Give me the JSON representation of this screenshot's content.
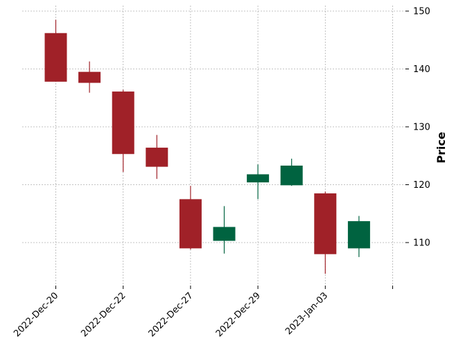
{
  "chart_data": {
    "type": "candlestick",
    "ylabel": "Price",
    "ylim": [
      102,
      151
    ],
    "yticks": [
      110,
      120,
      130,
      140,
      150
    ],
    "grid": true,
    "y_axis_side": "right",
    "xtick_labels": [
      {
        "index": 0,
        "label": "2022-Dec-20"
      },
      {
        "index": 2,
        "label": "2022-Dec-22"
      },
      {
        "index": 4,
        "label": "2022-Dec-27"
      },
      {
        "index": 6,
        "label": "2022-Dec-29"
      },
      {
        "index": 8,
        "label": "2023-Jan-03"
      }
    ],
    "x_tick_count": 11,
    "colors": {
      "up": "#006340",
      "down": "#A02128"
    },
    "candles": [
      {
        "open": 146.2,
        "high": 148.5,
        "low": 137.8,
        "close": 137.8
      },
      {
        "open": 139.5,
        "high": 141.3,
        "low": 135.9,
        "close": 137.6
      },
      {
        "open": 136.1,
        "high": 136.4,
        "low": 122.2,
        "close": 125.3
      },
      {
        "open": 126.4,
        "high": 128.6,
        "low": 121.0,
        "close": 123.1
      },
      {
        "open": 117.5,
        "high": 119.8,
        "low": 108.8,
        "close": 109.0
      },
      {
        "open": 110.3,
        "high": 116.3,
        "low": 108.1,
        "close": 112.7
      },
      {
        "open": 120.4,
        "high": 123.5,
        "low": 117.5,
        "close": 121.8
      },
      {
        "open": 119.9,
        "high": 124.5,
        "low": 119.8,
        "close": 123.3
      },
      {
        "open": 118.5,
        "high": 118.8,
        "low": 104.6,
        "close": 108.0
      },
      {
        "open": 109.0,
        "high": 114.6,
        "low": 107.5,
        "close": 113.7
      }
    ]
  }
}
